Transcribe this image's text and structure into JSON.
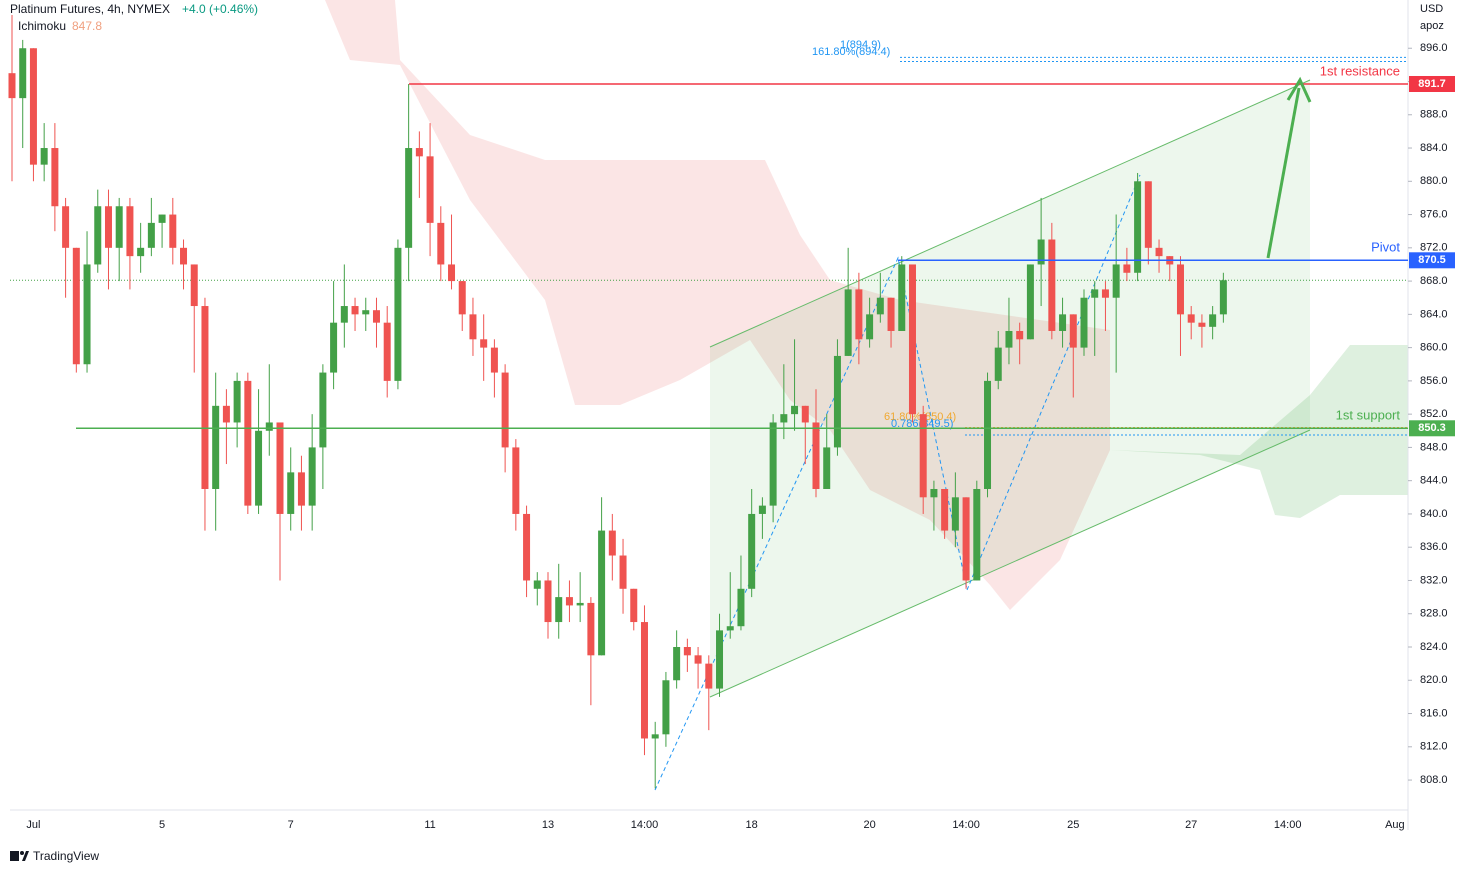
{
  "chart_data": {
    "type": "candlestick",
    "title": "Platinum Futures, 4h, NYMEX",
    "change": "+4.0 (+0.46%)",
    "indicator": {
      "name": "Ichimoku",
      "value": 847.8
    },
    "currency": "USD",
    "unit_label": "apoz",
    "categories": [
      null,
      null,
      "Jul",
      null,
      null,
      null,
      null,
      null,
      null,
      null,
      null,
      null,
      null,
      null,
      "5",
      null,
      null,
      null,
      null,
      null,
      null,
      null,
      null,
      null,
      null,
      null,
      "7",
      null,
      null,
      null,
      null,
      null,
      null,
      null,
      null,
      null,
      null,
      null,
      null,
      "11",
      null,
      null,
      null,
      null,
      null,
      null,
      null,
      null,
      null,
      null,
      "13",
      null,
      null,
      null,
      null,
      null,
      null,
      null,
      null,
      "14:00",
      null,
      null,
      null,
      null,
      null,
      null,
      null,
      null,
      null,
      "18",
      null,
      null,
      null,
      null,
      null,
      null,
      null,
      null,
      null,
      null,
      "20",
      null,
      null,
      null,
      null,
      null,
      null,
      null,
      null,
      "14:00",
      null,
      null,
      null,
      null,
      null,
      null,
      null,
      null,
      null,
      "25",
      null,
      null,
      null,
      null,
      null,
      null,
      null,
      null,
      null,
      null,
      "27",
      null,
      null,
      null,
      null,
      null,
      null,
      null,
      null,
      "14:00",
      null,
      null,
      null,
      null,
      null,
      null,
      null,
      null,
      null,
      "Aug"
    ],
    "open": [
      893,
      890,
      896,
      882,
      884,
      877,
      872,
      858,
      870,
      877,
      872,
      877,
      871,
      872,
      875,
      876,
      872,
      870,
      865,
      843,
      853,
      851,
      856,
      841,
      850,
      851,
      840,
      845,
      841,
      848,
      857,
      863,
      865,
      864,
      864.5,
      863,
      856,
      872,
      884,
      883,
      875,
      870,
      868,
      864,
      861,
      860,
      857,
      848,
      840,
      831,
      832,
      827,
      830,
      829,
      829.3,
      823,
      838,
      835,
      831,
      827,
      813,
      813.5,
      820,
      824,
      823,
      822,
      819,
      826,
      826.5,
      831,
      840,
      841,
      851,
      852,
      853,
      851,
      843,
      848,
      859,
      867,
      861,
      864,
      866,
      862,
      870,
      852,
      842,
      843,
      838,
      842,
      832,
      843,
      856,
      860,
      862,
      861,
      870,
      873,
      862,
      864,
      860,
      866,
      867,
      866,
      870,
      869,
      880,
      872,
      871,
      870,
      864,
      863,
      862.5,
      864,
      null,
      null,
      null,
      null,
      null,
      null,
      null,
      null,
      null,
      null,
      null,
      null,
      null,
      null,
      null,
      null
    ],
    "high": [
      900,
      897,
      896,
      887,
      887,
      878,
      872,
      874,
      879,
      879,
      878,
      878,
      875,
      878,
      876,
      878,
      873,
      870,
      866,
      857,
      855,
      857,
      857,
      855,
      858,
      851,
      848,
      847,
      852,
      858,
      868,
      870,
      866,
      866,
      866,
      865,
      873,
      891.7,
      886,
      887,
      877,
      876,
      868,
      866,
      864,
      861,
      858,
      849,
      841,
      833,
      833,
      834,
      832,
      833,
      830,
      842,
      840,
      837,
      831,
      829,
      815,
      821,
      826,
      825,
      824,
      823,
      828,
      833,
      835,
      843,
      842,
      852,
      858,
      861,
      853,
      855,
      852,
      861,
      872,
      869,
      866,
      869,
      866,
      871,
      870,
      853,
      844,
      843,
      845,
      842,
      844,
      857,
      862,
      866,
      863,
      870,
      878,
      875,
      866,
      864,
      867,
      868,
      868,
      876,
      872,
      881,
      880,
      873,
      871,
      871,
      865,
      864,
      865,
      869,
      null,
      null,
      null,
      null,
      null,
      null,
      null,
      null,
      null,
      null,
      null,
      null,
      null,
      null,
      null,
      null
    ],
    "low": [
      880,
      884,
      880,
      880,
      874,
      866,
      857,
      857,
      869,
      867,
      868,
      867,
      869,
      871,
      872,
      870,
      867,
      857,
      838,
      838,
      846,
      848,
      840,
      840,
      847,
      832,
      838,
      838,
      838,
      843,
      855,
      860,
      862,
      862,
      860,
      854,
      855,
      868,
      878,
      871,
      868,
      867,
      862,
      859,
      856,
      854,
      845,
      838,
      830,
      829,
      825,
      825,
      827,
      827,
      817,
      823,
      832,
      828,
      826,
      811,
      807,
      812,
      819,
      821,
      819,
      814,
      818,
      825,
      826,
      830,
      837,
      839,
      849,
      850,
      846,
      842,
      843,
      847,
      859,
      858,
      860,
      863,
      860,
      862,
      851,
      840,
      838,
      837,
      836,
      831,
      832,
      842,
      855,
      858,
      858,
      861,
      865,
      861,
      860,
      854,
      859,
      859,
      862,
      857,
      868,
      868,
      870,
      869,
      868,
      859,
      861,
      860,
      861,
      863,
      null,
      null,
      null,
      null,
      null,
      null,
      null,
      null,
      null,
      null,
      null,
      null,
      null,
      null,
      null,
      null
    ],
    "close": [
      890,
      896,
      882,
      884,
      877,
      872,
      858,
      870,
      877,
      872,
      877,
      871,
      872,
      875,
      876,
      872,
      870,
      865,
      843,
      853,
      851,
      856,
      841,
      850,
      851,
      840,
      845,
      841,
      848,
      857,
      863,
      865,
      864,
      864.5,
      863,
      856,
      872,
      884,
      883,
      875,
      870,
      868,
      864,
      861,
      860,
      857,
      848,
      840,
      832,
      832,
      827,
      830,
      829,
      829.3,
      823,
      838,
      835,
      831,
      827,
      813,
      813.5,
      820,
      824,
      823,
      822,
      819,
      826,
      826.5,
      831,
      840,
      841,
      851,
      852,
      853,
      851,
      843,
      848,
      859,
      867,
      861,
      864,
      866,
      862,
      870,
      852,
      842,
      843,
      838,
      842,
      832,
      843,
      856,
      860,
      862,
      861,
      870,
      873,
      862,
      864,
      860,
      866,
      867,
      866,
      870,
      869,
      880,
      872,
      871,
      870,
      864,
      863,
      862.5,
      864,
      868.1,
      null,
      null,
      null,
      null,
      null,
      null,
      null,
      null,
      null,
      null,
      null,
      null,
      null,
      null,
      null,
      null
    ],
    "up_color": "#43a047",
    "down_color": "#ef5350",
    "last_price": 868.1,
    "ylim": [
      804.4,
      901.8
    ],
    "yticks": [
      {
        "value": 808,
        "label": "808.0"
      },
      {
        "value": 812,
        "label": "812.0"
      },
      {
        "value": 816,
        "label": "816.0"
      },
      {
        "value": 820,
        "label": "820.0"
      },
      {
        "value": 824,
        "label": "824.0"
      },
      {
        "value": 828,
        "label": "828.0"
      },
      {
        "value": 832,
        "label": "832.0"
      },
      {
        "value": 836,
        "label": "836.0"
      },
      {
        "value": 840,
        "label": "840.0"
      },
      {
        "value": 844,
        "label": "844.0"
      },
      {
        "value": 848,
        "label": "848.0"
      },
      {
        "value": 852,
        "label": "852.0"
      },
      {
        "value": 856,
        "label": "856.0"
      },
      {
        "value": 860,
        "label": "860.0"
      },
      {
        "value": 864,
        "label": "864.0"
      },
      {
        "value": 868,
        "label": "868.0"
      },
      {
        "value": 872,
        "label": "872.0"
      },
      {
        "value": 876,
        "label": "876.0"
      },
      {
        "value": 880,
        "label": "880.0"
      },
      {
        "value": 884,
        "label": "884.0"
      },
      {
        "value": 888,
        "label": "888.0"
      },
      {
        "value": 892,
        "label": "892.0"
      },
      {
        "value": 896,
        "label": "896.0"
      }
    ],
    "grid": false,
    "levels": [
      {
        "name": "1st resistance",
        "value": 891.7,
        "color": "#f23645"
      },
      {
        "name": "Pivot",
        "value": 870.5,
        "color": "#2962ff"
      },
      {
        "name": "1st support",
        "value": 850.3,
        "color": "#4caf50"
      }
    ],
    "fib": [
      {
        "label": "161.80%(894.4)",
        "value": 894.4,
        "color": "#2196f3"
      },
      {
        "label": "1(894.9)",
        "value": 894.9,
        "color": "#2196f3"
      },
      {
        "label": "61.80%(850.4)",
        "value": 850.4,
        "color": "#f0a830"
      },
      {
        "label": "0.786(849.5)",
        "value": 849.5,
        "color": "#2196f3"
      }
    ]
  },
  "footer": {
    "brand": "TradingView"
  }
}
